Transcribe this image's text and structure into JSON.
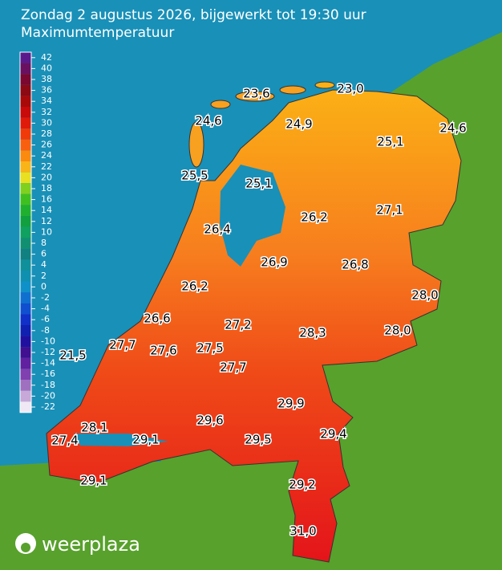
{
  "header": {
    "title": "Zondag 2 augustus 2026, bijgewerkt tot 19:30 uur",
    "subtitle": "Maximumtemperatuur"
  },
  "legend": {
    "ticks": [
      42,
      40,
      38,
      36,
      34,
      32,
      30,
      28,
      26,
      24,
      22,
      20,
      18,
      16,
      14,
      12,
      10,
      8,
      6,
      4,
      2,
      0,
      -2,
      -4,
      -6,
      -8,
      -10,
      -12,
      -14,
      -16,
      -18,
      -20,
      -22
    ],
    "colors": [
      "#5a1a8c",
      "#6a1060",
      "#7a0830",
      "#8c0a14",
      "#a80a0a",
      "#c80a0a",
      "#e01a0a",
      "#f03a0a",
      "#f86010",
      "#fa8a10",
      "#f8b418",
      "#e8e020",
      "#80d020",
      "#40c020",
      "#20b030",
      "#10a040",
      "#10a060",
      "#109070",
      "#108080",
      "#10909a",
      "#1090b0",
      "#1090c8",
      "#1070d0",
      "#1050d0",
      "#1030c8",
      "#1020b0",
      "#2010a0",
      "#401090",
      "#6020a0",
      "#8040b0",
      "#a070c0",
      "#c8a8d8",
      "#f0e8f4"
    ]
  },
  "stations": [
    "23,6",
    "23,0",
    "24,6",
    "24,9",
    "24,6",
    "25,1",
    "25,5",
    "25,1",
    "26,2",
    "27,1",
    "26,4",
    "26,9",
    "26,8",
    "26,2",
    "28,0",
    "26,6",
    "27,2",
    "28,3",
    "28,0",
    "21,5",
    "27,7",
    "27,6",
    "27,5",
    "27,7",
    "29,9",
    "28,1",
    "29,6",
    "27,4",
    "29,1",
    "29,5",
    "29,4",
    "29,2",
    "29,1",
    "31,0"
  ],
  "logo": "weerplaza"
}
